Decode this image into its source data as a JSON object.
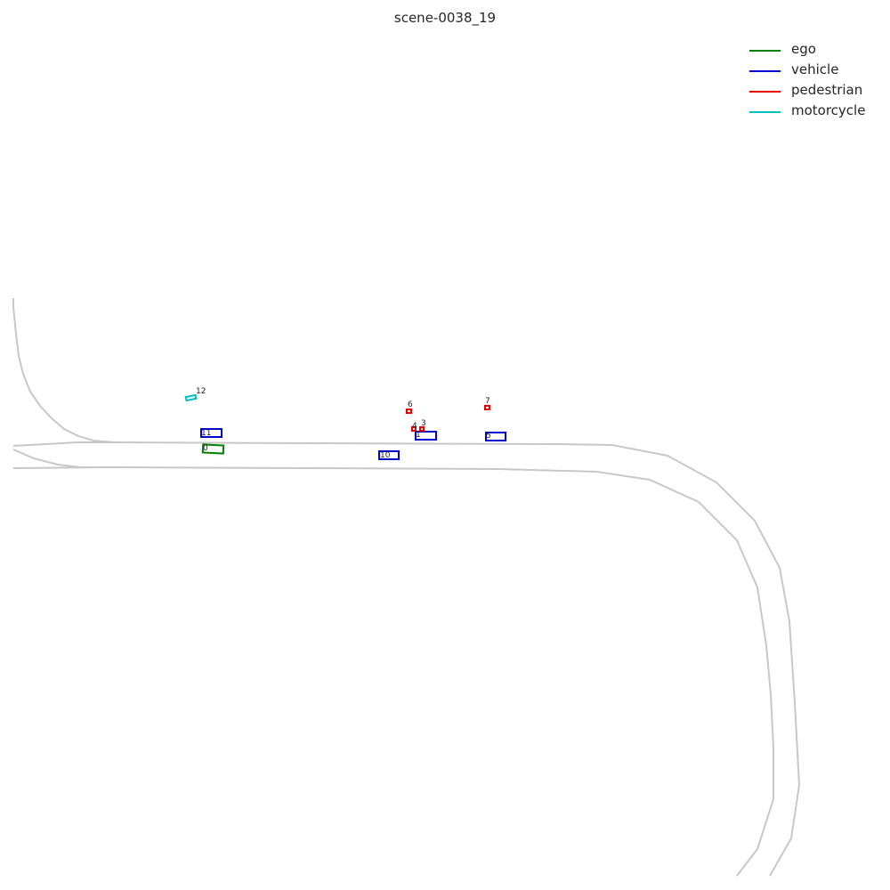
{
  "title": "scene-0038_19",
  "colors": {
    "road": "#c8c8c8",
    "ego": "#008000",
    "vehicle": "#0000cc",
    "pedestrian": "#e60000",
    "motorcycle": "#00bfbf"
  },
  "legend": [
    {
      "category": "ego",
      "label": "ego"
    },
    {
      "category": "vehicle",
      "label": "vehicle"
    },
    {
      "category": "pedestrian",
      "label": "pedestrian"
    },
    {
      "category": "motorcycle",
      "label": "motorcycle"
    }
  ],
  "agents": [
    {
      "id": "0",
      "category": "ego"
    },
    {
      "id": "11",
      "category": "vehicle"
    },
    {
      "id": "10",
      "category": "vehicle"
    },
    {
      "id": "1",
      "category": "vehicle"
    },
    {
      "id": "5",
      "category": "vehicle"
    },
    {
      "id": "3",
      "category": "pedestrian"
    },
    {
      "id": "4",
      "category": "pedestrian"
    },
    {
      "id": "6",
      "category": "pedestrian"
    },
    {
      "id": "7",
      "category": "pedestrian"
    },
    {
      "id": "12",
      "category": "motorcycle"
    }
  ]
}
